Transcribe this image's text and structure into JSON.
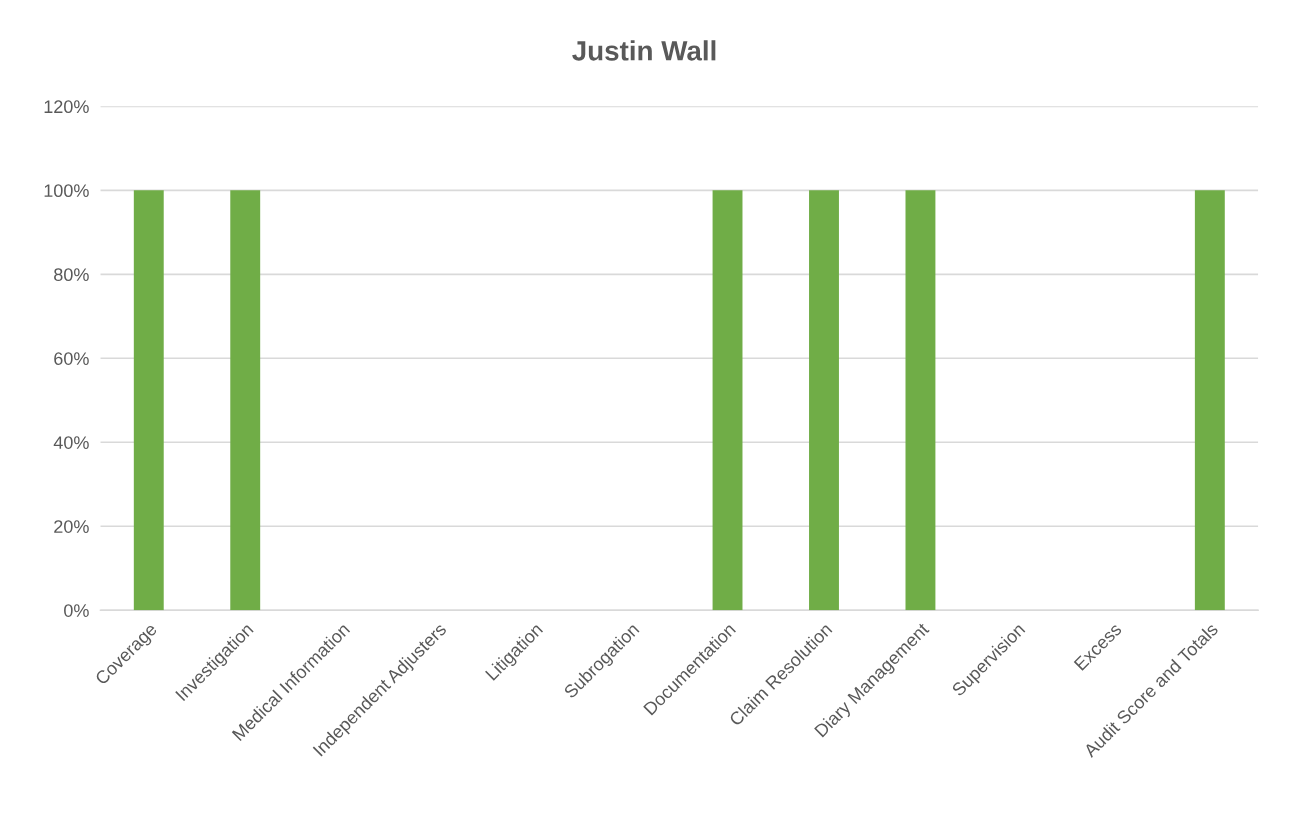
{
  "chart_data": {
    "type": "bar",
    "title": "Justin Wall",
    "categories": [
      "Coverage",
      "Investigation",
      "Medical Information",
      "Independent Adjusters",
      "Litigation",
      "Subrogation",
      "Documentation",
      "Claim Resolution",
      "Diary Management",
      "Supervision",
      "Excess",
      "Audit Score and Totals"
    ],
    "values": [
      100,
      100,
      0,
      0,
      0,
      0,
      100,
      100,
      100,
      0,
      0,
      100
    ],
    "color": "#70ad47",
    "ylim": [
      0,
      120
    ],
    "yticks": [
      {
        "value": 0,
        "label": "0%"
      },
      {
        "value": 20,
        "label": "20%"
      },
      {
        "value": 40,
        "label": "40%"
      },
      {
        "value": 60,
        "label": "60%"
      },
      {
        "value": 80,
        "label": "80%"
      },
      {
        "value": 100,
        "label": "100%"
      },
      {
        "value": 120,
        "label": "120%"
      }
    ],
    "grid": "y",
    "legend": false
  }
}
